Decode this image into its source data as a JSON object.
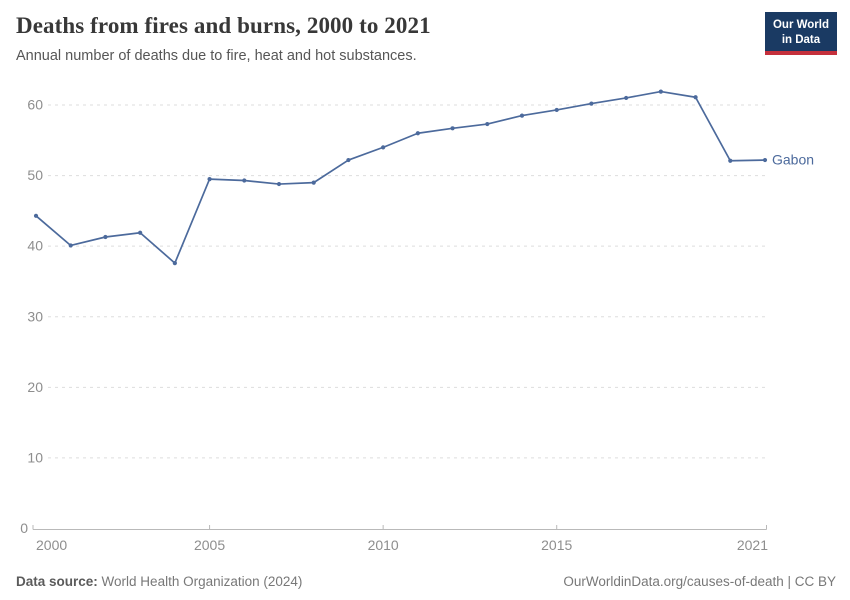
{
  "header": {
    "title": "Deaths from fires and burns, 2000 to 2021",
    "subtitle": "Annual number of deaths due to fire, heat and hot substances."
  },
  "logo": {
    "line1": "Our World",
    "line2": "in Data",
    "bg_color": "#1a3a63",
    "accent_color": "#c5303c"
  },
  "chart_data": {
    "type": "line",
    "title": "Deaths from fires and burns, 2000 to 2021",
    "xlabel": "",
    "ylabel": "",
    "x": [
      2000,
      2001,
      2002,
      2003,
      2004,
      2005,
      2006,
      2007,
      2008,
      2009,
      2010,
      2011,
      2012,
      2013,
      2014,
      2015,
      2016,
      2017,
      2018,
      2019,
      2020,
      2021
    ],
    "series": [
      {
        "name": "Gabon",
        "color": "#4C6A9C",
        "values": [
          44.3,
          40.1,
          41.3,
          41.9,
          37.6,
          49.5,
          49.3,
          48.8,
          49.0,
          52.2,
          54.0,
          56.0,
          56.7,
          57.3,
          58.5,
          59.3,
          60.2,
          61.0,
          61.9,
          61.1,
          52.1,
          52.2
        ]
      }
    ],
    "x_ticks": [
      2000,
      2005,
      2010,
      2015,
      2021
    ],
    "y_ticks": [
      0,
      10,
      20,
      30,
      40,
      50,
      60
    ],
    "xlim": [
      2000,
      2021
    ],
    "ylim": [
      0,
      63
    ],
    "grid": "horizontal-dashed",
    "legend_position": "end-of-line-label",
    "grid_color": "#dddddd",
    "axis_color": "#b9b9b9",
    "tick_label_color": "#8e8e8e"
  },
  "footer": {
    "source_label": "Data source:",
    "source_value": "World Health Organization (2024)",
    "link": "OurWorldinData.org/causes-of-death | CC BY"
  }
}
